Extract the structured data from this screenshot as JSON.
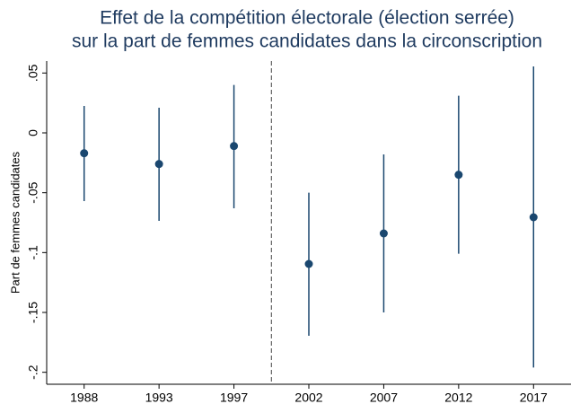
{
  "chart_data": {
    "type": "errorbar",
    "title": [
      "Effet de la compétition électorale (élection serrée)",
      "sur la part de femmes candidates dans la circonscription"
    ],
    "y_label": "Part de femmes candidates",
    "categories": [
      "1988",
      "1993",
      "1997",
      "2002",
      "2007",
      "2012",
      "2017"
    ],
    "values": [
      -0.017,
      -0.026,
      -0.011,
      -0.1095,
      -0.084,
      -0.035,
      -0.0705
    ],
    "ci_low": [
      -0.057,
      -0.0735,
      -0.063,
      -0.1695,
      -0.15,
      -0.101,
      -0.196
    ],
    "ci_high": [
      0.0225,
      0.021,
      0.04,
      -0.05,
      -0.018,
      0.031,
      0.0555
    ],
    "color": "#1a476f",
    "vline_after": "1997",
    "ylim": [
      -0.21,
      0.06
    ],
    "yticks": [
      {
        "value": 0.05,
        "label": ".05"
      },
      0,
      {
        "value": -0.05,
        "label": "-.05"
      },
      {
        "value": -0.1,
        "label": "-.1"
      },
      {
        "value": -0.15,
        "label": "-.15"
      },
      {
        "value": -0.2,
        "label": "-.2"
      }
    ],
    "grid": false
  }
}
